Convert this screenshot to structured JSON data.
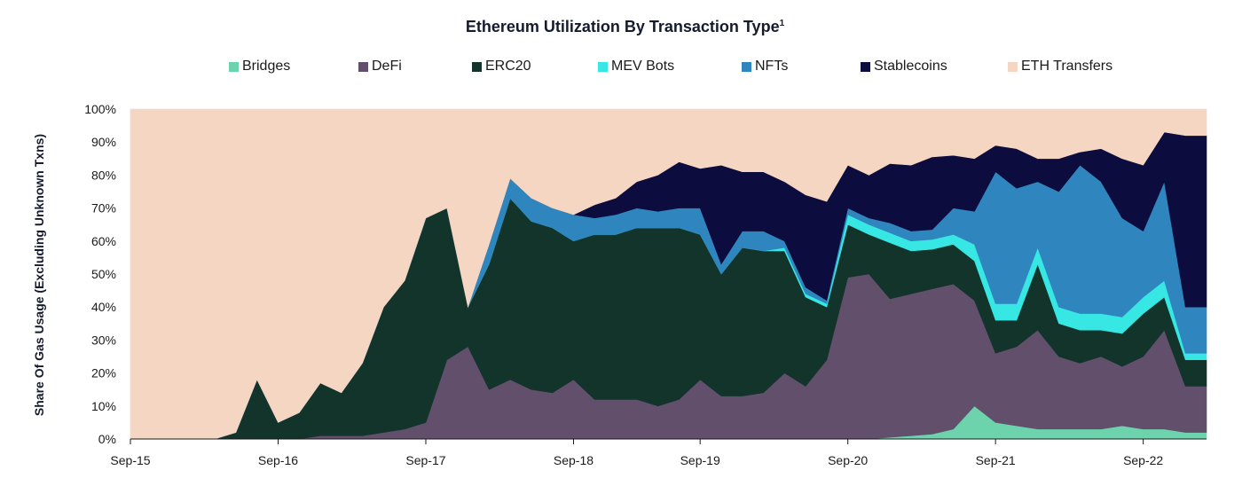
{
  "chart_data": {
    "type": "area",
    "title": "Ethereum Utilization By Transaction Type",
    "title_footnote": "1",
    "xlabel": "",
    "ylabel": "Share Of Gas Usage (Excluding Unknown Txns)",
    "ylim": [
      0,
      100
    ],
    "stacked": true,
    "y_ticks": [
      "0%",
      "10%",
      "20%",
      "30%",
      "40%",
      "50%",
      "60%",
      "70%",
      "80%",
      "90%",
      "100%"
    ],
    "x_tick_labels": [
      "Sep-15",
      "Sep-16",
      "Sep-17",
      "Sep-18",
      "Sep-19",
      "Sep-20",
      "Sep-21",
      "Sep-22"
    ],
    "legend_position": "top",
    "x": [
      "Sep-15",
      "Nov-15",
      "Jan-16",
      "Mar-16",
      "May-16",
      "Jun-16",
      "Jul-16",
      "Sep-16",
      "Nov-16",
      "Jan-17",
      "Mar-17",
      "Apr-17",
      "May-17",
      "Jul-17",
      "Sep-17",
      "Nov-17",
      "Dec-17",
      "Jan-18",
      "Mar-18",
      "May-18",
      "Jul-18",
      "Sep-18",
      "Nov-18",
      "Jan-19",
      "Mar-19",
      "May-19",
      "Jul-19",
      "Sep-19",
      "Oct-19",
      "Nov-19",
      "Jan-20",
      "Mar-20",
      "May-20",
      "Jul-20",
      "Sep-20",
      "Oct-20",
      "Nov-20",
      "Jan-21",
      "Mar-21",
      "May-21",
      "Jul-21",
      "Sep-21",
      "Oct-21",
      "Nov-21",
      "Jan-22",
      "Mar-22",
      "May-22",
      "Jul-22",
      "Sep-22",
      "Oct-22",
      "Nov-22",
      "Dec-22"
    ],
    "series": [
      {
        "name": "Bridges",
        "color": "#6dd3ad",
        "values": [
          0,
          0,
          0,
          0,
          0,
          0,
          0,
          0,
          0,
          0,
          0,
          0,
          0,
          0,
          0,
          0,
          0,
          0,
          0,
          0,
          0,
          0,
          0,
          0,
          0,
          0,
          0,
          0,
          0,
          0,
          0,
          0,
          0,
          0,
          0,
          0,
          0.5,
          1,
          1.5,
          3,
          10,
          5,
          4,
          3,
          3,
          3,
          3,
          4,
          3,
          3,
          2,
          2
        ]
      },
      {
        "name": "DeFi",
        "color": "#614f6c",
        "values": [
          0,
          0,
          0,
          0,
          0,
          0,
          0,
          0,
          0,
          1,
          1,
          1,
          2,
          3,
          5,
          24,
          28,
          15,
          18,
          15,
          14,
          18,
          12,
          12,
          12,
          10,
          12,
          18,
          13,
          13,
          14,
          20,
          16,
          24,
          49,
          50,
          42,
          43,
          44,
          44,
          32,
          21,
          24,
          30,
          22,
          20,
          22,
          18,
          22,
          30,
          14,
          14
        ]
      },
      {
        "name": "ERC20",
        "color": "#12342b",
        "values": [
          0,
          0,
          0,
          0,
          0,
          2,
          18,
          5,
          8,
          16,
          13,
          22,
          38,
          45,
          62,
          46,
          12,
          38,
          55,
          51,
          50,
          42,
          50,
          50,
          52,
          54,
          52,
          44,
          37,
          45,
          43,
          37,
          27,
          16,
          16,
          12,
          17,
          13,
          12,
          12,
          12,
          10,
          8,
          20,
          10,
          10,
          8,
          10,
          13,
          10,
          8,
          8
        ]
      },
      {
        "name": "MEV Bots",
        "color": "#36e7e3",
        "values": [
          0,
          0,
          0,
          0,
          0,
          0,
          0,
          0,
          0,
          0,
          0,
          0,
          0,
          0,
          0,
          0,
          0,
          0,
          0,
          0,
          0,
          0,
          0,
          0,
          0,
          0,
          0,
          0,
          0,
          0,
          0,
          1,
          1,
          1,
          3,
          3,
          3,
          3,
          3,
          3,
          5,
          5,
          5,
          5,
          5,
          5,
          5,
          5,
          5,
          5,
          2,
          2
        ]
      },
      {
        "name": "NFTs",
        "color": "#2f86be",
        "values": [
          0,
          0,
          0,
          0,
          0,
          0,
          0,
          0,
          0,
          0,
          0,
          0,
          0,
          0,
          0,
          0,
          0,
          6,
          6,
          7,
          6,
          8,
          5,
          6,
          6,
          5,
          6,
          8,
          3,
          5,
          6,
          2,
          2,
          1,
          2,
          2,
          3,
          3,
          3,
          8,
          10,
          40,
          35,
          20,
          35,
          45,
          40,
          30,
          20,
          30,
          14,
          14
        ]
      },
      {
        "name": "Stablecoins",
        "color": "#0d0c3e",
        "values": [
          0,
          0,
          0,
          0,
          0,
          0,
          0,
          0,
          0,
          0,
          0,
          0,
          0,
          0,
          0,
          0,
          0,
          0,
          0,
          0,
          0,
          0,
          4,
          5,
          8,
          11,
          14,
          12,
          30,
          18,
          18,
          18,
          28,
          30,
          13,
          13,
          18,
          20,
          22,
          16,
          16,
          8,
          12,
          7,
          10,
          4,
          10,
          18,
          20,
          15,
          52,
          52
        ]
      },
      {
        "name": "ETH Transfers",
        "color": "#f4d6c3",
        "values": [
          100,
          100,
          100,
          100,
          100,
          98,
          82,
          95,
          92,
          83,
          86,
          77,
          60,
          52,
          33,
          30,
          60,
          41,
          21,
          27,
          30,
          32,
          29,
          27,
          24,
          20,
          16,
          18,
          17,
          19,
          19,
          22,
          26,
          28,
          17,
          20,
          16.5,
          17,
          14.5,
          14,
          15,
          11,
          12,
          15,
          15,
          13,
          12,
          15,
          17,
          7,
          8,
          8
        ]
      }
    ]
  }
}
